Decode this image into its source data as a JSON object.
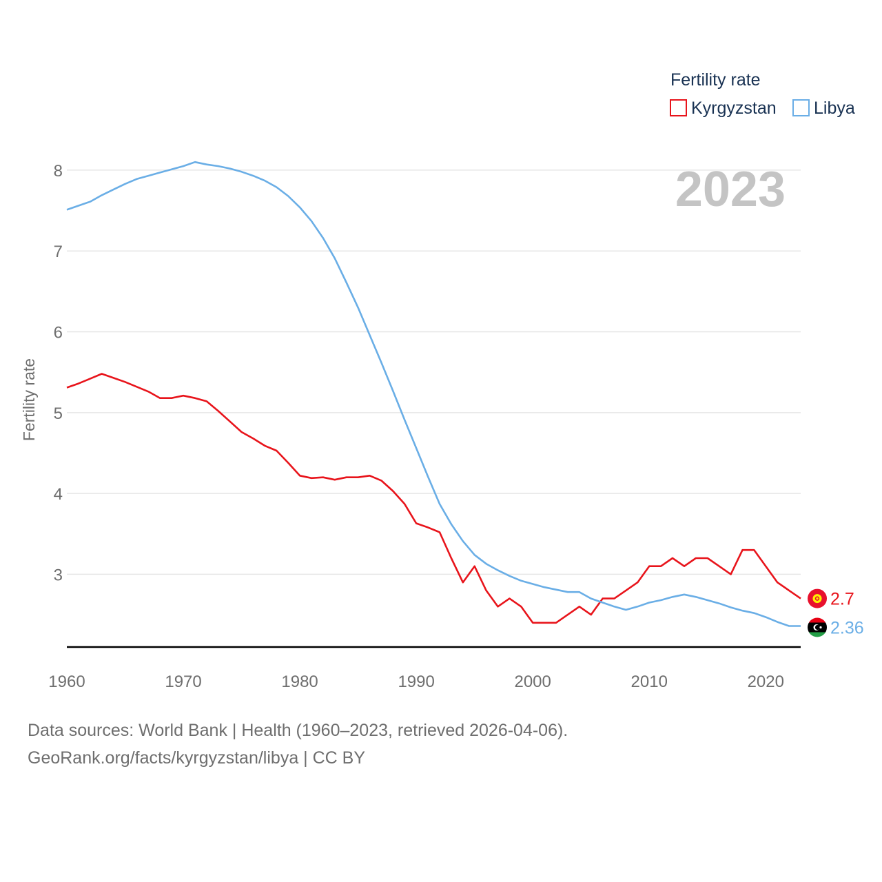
{
  "chart_data": {
    "type": "line",
    "ylabel": "Fertility rate",
    "xlabel": "",
    "legend_title": "Fertility rate",
    "legend_position": "top-right",
    "year_label": "2023",
    "xlim": [
      1960,
      2023
    ],
    "ylim": [
      2.1,
      8.4
    ],
    "x_ticks": [
      1960,
      1970,
      1980,
      1990,
      2000,
      2010,
      2020
    ],
    "y_ticks": [
      3,
      4,
      5,
      6,
      7,
      8
    ],
    "grid": true,
    "series": [
      {
        "name": "Kyrgyzstan",
        "color": "#e8141b",
        "end_label": "2.7",
        "flag_icon": "kyrgyzstan-flag-icon",
        "x": [
          1960,
          1961,
          1962,
          1963,
          1964,
          1965,
          1966,
          1967,
          1968,
          1969,
          1970,
          1971,
          1972,
          1973,
          1974,
          1975,
          1976,
          1977,
          1978,
          1979,
          1980,
          1981,
          1982,
          1983,
          1984,
          1985,
          1986,
          1987,
          1988,
          1989,
          1990,
          1991,
          1992,
          1993,
          1994,
          1995,
          1996,
          1997,
          1998,
          1999,
          2000,
          2001,
          2002,
          2003,
          2004,
          2005,
          2006,
          2007,
          2008,
          2009,
          2010,
          2011,
          2012,
          2013,
          2014,
          2015,
          2016,
          2017,
          2018,
          2019,
          2020,
          2021,
          2022,
          2023
        ],
        "values": [
          5.31,
          5.36,
          5.42,
          5.48,
          5.43,
          5.38,
          5.32,
          5.26,
          5.18,
          5.18,
          5.21,
          5.18,
          5.14,
          5.02,
          4.89,
          4.76,
          4.68,
          4.59,
          4.53,
          4.38,
          4.22,
          4.19,
          4.2,
          4.17,
          4.2,
          4.2,
          4.22,
          4.16,
          4.03,
          3.87,
          3.63,
          3.58,
          3.52,
          3.2,
          2.9,
          3.1,
          2.8,
          2.6,
          2.7,
          2.6,
          2.4,
          2.4,
          2.4,
          2.5,
          2.6,
          2.5,
          2.7,
          2.7,
          2.8,
          2.9,
          3.1,
          3.1,
          3.2,
          3.1,
          3.2,
          3.2,
          3.1,
          3.0,
          3.3,
          3.3,
          3.1,
          2.9,
          2.8,
          2.7
        ]
      },
      {
        "name": "Libya",
        "color": "#6aaee6",
        "end_label": "2.36",
        "flag_icon": "libya-flag-icon",
        "x": [
          1960,
          1961,
          1962,
          1963,
          1964,
          1965,
          1966,
          1967,
          1968,
          1969,
          1970,
          1971,
          1972,
          1973,
          1974,
          1975,
          1976,
          1977,
          1978,
          1979,
          1980,
          1981,
          1982,
          1983,
          1984,
          1985,
          1986,
          1987,
          1988,
          1989,
          1990,
          1991,
          1992,
          1993,
          1994,
          1995,
          1996,
          1997,
          1998,
          1999,
          2000,
          2001,
          2002,
          2003,
          2004,
          2005,
          2006,
          2007,
          2008,
          2009,
          2010,
          2011,
          2012,
          2013,
          2014,
          2015,
          2016,
          2017,
          2018,
          2019,
          2020,
          2021,
          2022,
          2023
        ],
        "values": [
          7.51,
          7.56,
          7.61,
          7.69,
          7.76,
          7.83,
          7.89,
          7.93,
          7.97,
          8.01,
          8.05,
          8.1,
          8.07,
          8.05,
          8.02,
          7.98,
          7.93,
          7.87,
          7.79,
          7.68,
          7.54,
          7.37,
          7.16,
          6.91,
          6.61,
          6.3,
          5.96,
          5.62,
          5.27,
          4.91,
          4.56,
          4.21,
          3.87,
          3.62,
          3.41,
          3.24,
          3.13,
          3.05,
          2.98,
          2.92,
          2.88,
          2.84,
          2.81,
          2.78,
          2.78,
          2.7,
          2.65,
          2.6,
          2.56,
          2.6,
          2.65,
          2.68,
          2.72,
          2.75,
          2.72,
          2.68,
          2.64,
          2.59,
          2.55,
          2.52,
          2.47,
          2.41,
          2.36,
          2.36
        ]
      }
    ]
  },
  "footer": {
    "sources": "Data sources: World Bank | Health (1960–2023, retrieved 2026-04-06).",
    "credit": "GeoRank.org/facts/kyrgyzstan/libya | CC BY"
  }
}
